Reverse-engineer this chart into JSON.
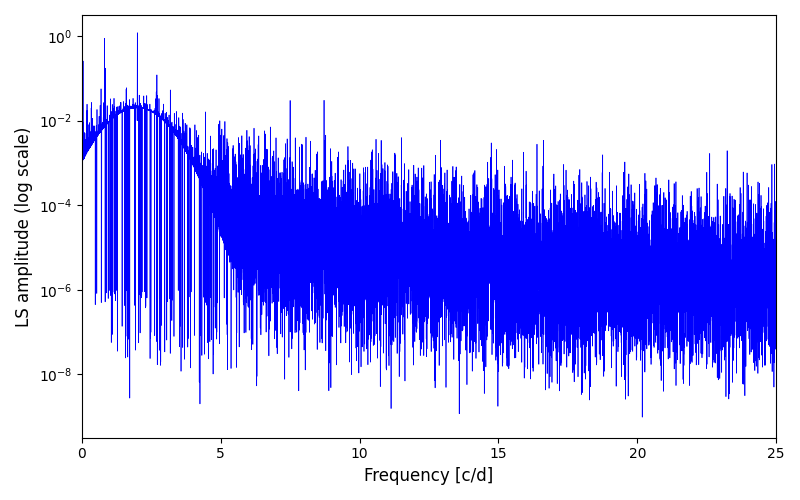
{
  "title": "",
  "xlabel": "Frequency [c/d]",
  "ylabel": "LS amplitude (log scale)",
  "line_color": "#0000FF",
  "line_width": 0.5,
  "xlim": [
    0,
    25
  ],
  "ylim_log_min": -9.5,
  "ylim_log_max": 0.5,
  "yscale": "log",
  "figsize": [
    8.0,
    5.0
  ],
  "dpi": 100,
  "bg_color": "#ffffff",
  "main_peak_freq": 2.0,
  "main_peak_amp": 1.2,
  "seed": 12345
}
